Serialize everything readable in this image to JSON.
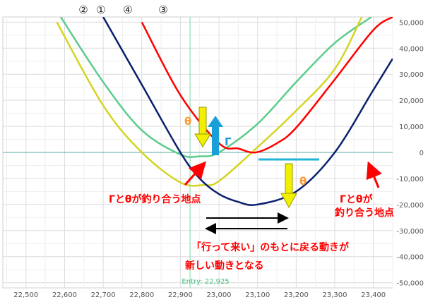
{
  "chart_data": {
    "type": "line",
    "xlabel": "",
    "ylabel": "",
    "xlim": [
      22440,
      23450
    ],
    "ylim": [
      -52000,
      52000
    ],
    "x_ticks": [
      22500,
      22600,
      22700,
      22800,
      22900,
      23000,
      23100,
      23200,
      23300,
      23400
    ],
    "x_tick_labels": [
      "22,500",
      "22,600",
      "22,700",
      "22,800",
      "22,900",
      "23,000",
      "23,100",
      "23,200",
      "23,300",
      "23,400"
    ],
    "y_ticks": [
      50000,
      40000,
      30000,
      20000,
      10000,
      0,
      -10000,
      -20000,
      -30000,
      -40000,
      -50000
    ],
    "y_tick_labels": [
      "50,000",
      "40,000",
      "30,000",
      "20,000",
      "10,000",
      "0",
      "-10,000",
      "-20,000",
      "-30,000",
      "-40,000",
      "-50,000"
    ],
    "grid": true,
    "entry": {
      "x": 22925,
      "label": "Entry: 22,925"
    },
    "series": [
      {
        "name": "①",
        "color": "#5ccc8c",
        "x": [
          22590,
          22700,
          22800,
          22900,
          22950,
          23000,
          23100,
          23200,
          23300,
          23395
        ],
        "y": [
          52000,
          27000,
          8500,
          -800,
          -1500,
          0,
          11000,
          27000,
          42000,
          52000
        ]
      },
      {
        "name": "②",
        "color": "#d4d421",
        "x": [
          22580,
          22700,
          22800,
          22900,
          22960,
          23000,
          23100,
          23200,
          23300,
          23370
        ],
        "y": [
          50000,
          18000,
          0,
          -11500,
          -12500,
          -11000,
          2000,
          16000,
          32000,
          52000
        ]
      },
      {
        "name": "③",
        "color": "#ff0000",
        "x": [
          22800,
          22900,
          23000,
          23050,
          23095,
          23150,
          23200,
          23300,
          23400,
          23450
        ],
        "y": [
          50000,
          22000,
          3500,
          1500,
          0,
          3500,
          9500,
          28000,
          47000,
          52000
        ]
      },
      {
        "name": "④",
        "color": "#0a1f6e",
        "x": [
          22700,
          22800,
          22900,
          22950,
          23000,
          23050,
          23100,
          23200,
          23300,
          23400,
          23450
        ],
        "y": [
          52000,
          26000,
          0,
          -10000,
          -16000,
          -19000,
          -20000,
          -15000,
          0,
          24000,
          36000
        ]
      }
    ],
    "annotations": [
      {
        "id": "left-point",
        "lines": [
          "Γとθが釣り合う地点"
        ]
      },
      {
        "id": "right-point",
        "lines": [
          "Γとθが",
          "釣り合う地点"
        ]
      },
      {
        "id": "caption",
        "lines": [
          "「行って来い」のもとに戻る動きが",
          "新しい動きとなる"
        ]
      },
      {
        "id": "theta-left",
        "lines": [
          "θ"
        ]
      },
      {
        "id": "gamma",
        "lines": [
          "Γ"
        ]
      },
      {
        "id": "theta-right",
        "lines": [
          "θ"
        ]
      }
    ]
  }
}
